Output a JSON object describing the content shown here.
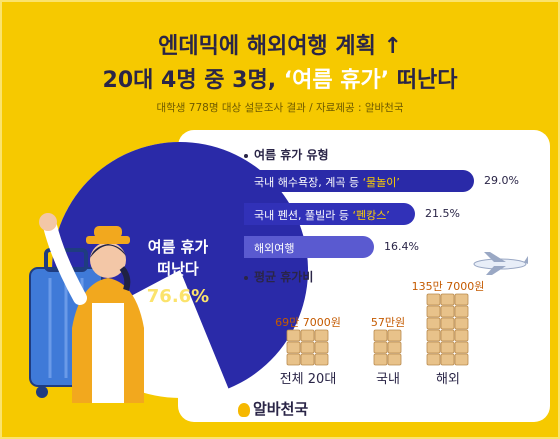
{
  "title_line1": "엔데믹에 해외여행 계획 ↑",
  "title_line2_prefix": "20대 4명 중 3명, ",
  "title_line2_highlight": "‘여름 휴가’",
  "title_line2_suffix": " 떠난다",
  "source": "대학생 778명 대상 설문조사 결과 / 자료제공 : 알바천국",
  "pie": {
    "label_line1": "여름 휴가",
    "label_line2": "떠난다",
    "percent_label": "76.6%",
    "value": 76.6,
    "color_main": "#2a2aa8",
    "color_rest": "#ffffff"
  },
  "vacation_types": {
    "heading": "여름 휴가 유형",
    "items": [
      {
        "text": "국내 해수욕장, 계곡 등 ",
        "quote": "‘물놀이’",
        "value": 29.0,
        "label": "29.0%",
        "color": "#2a2aa8"
      },
      {
        "text": "국내 펜션, 풀빌라 등 ",
        "quote": "‘펜캉스’",
        "value": 21.5,
        "label": "21.5%",
        "color": "#3131b8"
      },
      {
        "text": "해외여행",
        "quote": "",
        "value": 16.4,
        "label": "16.4%",
        "color": "#5a5ad0"
      }
    ]
  },
  "spending": {
    "heading": "평균 휴가비",
    "items": [
      {
        "category": "전체 20대",
        "amount_label": "69만 7000원",
        "value": 697000
      },
      {
        "category": "국내",
        "amount_label": "57만원",
        "value": 570000
      },
      {
        "category": "해외",
        "amount_label": "135만 7000원",
        "value": 1357000
      }
    ]
  },
  "logo": "알바천국"
}
